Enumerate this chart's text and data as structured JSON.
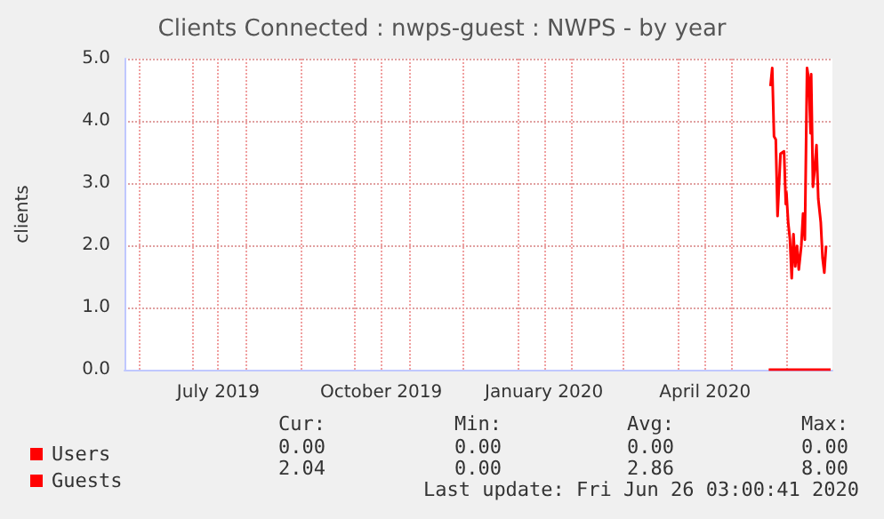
{
  "chart_data": {
    "type": "line",
    "title": "Clients Connected : nwps-guest : NWPS - by year",
    "ylabel": "clients",
    "xlim": [
      "2019-05-24",
      "2020-06-27"
    ],
    "xticks": [
      {
        "value": "2019-06-01",
        "label": null
      },
      {
        "value": "2019-07-01",
        "label": null
      },
      {
        "value": "2019-07-16",
        "label": "July 2019"
      },
      {
        "value": "2019-08-01",
        "label": null
      },
      {
        "value": "2019-09-01",
        "label": null
      },
      {
        "value": "2019-10-01",
        "label": null
      },
      {
        "value": "2019-10-16",
        "label": "October 2019"
      },
      {
        "value": "2019-11-01",
        "label": null
      },
      {
        "value": "2019-12-01",
        "label": null
      },
      {
        "value": "2020-01-01",
        "label": null
      },
      {
        "value": "2020-01-16",
        "label": "January 2020"
      },
      {
        "value": "2020-02-01",
        "label": null
      },
      {
        "value": "2020-03-01",
        "label": null
      },
      {
        "value": "2020-04-01",
        "label": null
      },
      {
        "value": "2020-04-16",
        "label": "April 2020"
      },
      {
        "value": "2020-05-01",
        "label": null
      },
      {
        "value": "2020-06-01",
        "label": null
      }
    ],
    "ylim": [
      0,
      5
    ],
    "yticks": [
      {
        "value": 0,
        "label": "0.0"
      },
      {
        "value": 1,
        "label": "1.0"
      },
      {
        "value": 2,
        "label": "2.0"
      },
      {
        "value": 3,
        "label": "3.0"
      },
      {
        "value": 4,
        "label": "4.0"
      },
      {
        "value": 5,
        "label": "5.0"
      }
    ],
    "grid": true,
    "legend": "bottom left",
    "marker": "none",
    "line_style": "solid",
    "series": [
      {
        "name": "Users",
        "color": "#ff0000",
        "x": [
          "2020-05-22",
          "2020-06-26"
        ],
        "values": [
          0,
          0
        ]
      },
      {
        "name": "Guests",
        "color": "#ff0000",
        "x": [
          "2020-05-23",
          "2020-05-24",
          "2020-05-25",
          "2020-05-26",
          "2020-05-27",
          "2020-05-28T16:00",
          "2020-05-30T16:00",
          "2020-05-31T16:00",
          "2020-06-01",
          "2020-06-02",
          "2020-06-03",
          "2020-06-04",
          "2020-06-05",
          "2020-06-06",
          "2020-06-07",
          "2020-06-08",
          "2020-06-09T10:00",
          "2020-06-10T10:00",
          "2020-06-11T10:00",
          "2020-06-12T16:00",
          "2020-06-13T16:00",
          "2020-06-14T16:00",
          "2020-06-15",
          "2020-06-16",
          "2020-06-17",
          "2020-06-18",
          "2020-06-19",
          "2020-06-20T10:00",
          "2020-06-21T10:00",
          "2020-06-22T10:00",
          "2020-06-23T10:00"
        ],
        "values": [
          4.56,
          4.85,
          3.75,
          3.7,
          2.47,
          3.47,
          3.51,
          2.66,
          2.85,
          2.37,
          2.09,
          1.47,
          2.18,
          1.66,
          1.99,
          1.61,
          1.99,
          2.51,
          2.09,
          4.85,
          4.66,
          3.8,
          4.75,
          2.94,
          3.23,
          3.61,
          2.75,
          2.37,
          1.8,
          1.56,
          1.99
        ]
      }
    ],
    "annotations": [
      "Cur:",
      "Min:",
      "Avg:",
      "Max:",
      "0.00",
      "0.00",
      "0.00",
      "0.00",
      "2.04",
      "0.00",
      "2.86",
      "8.00",
      "Last update: Fri Jun 26 03:00:41 2020"
    ]
  }
}
